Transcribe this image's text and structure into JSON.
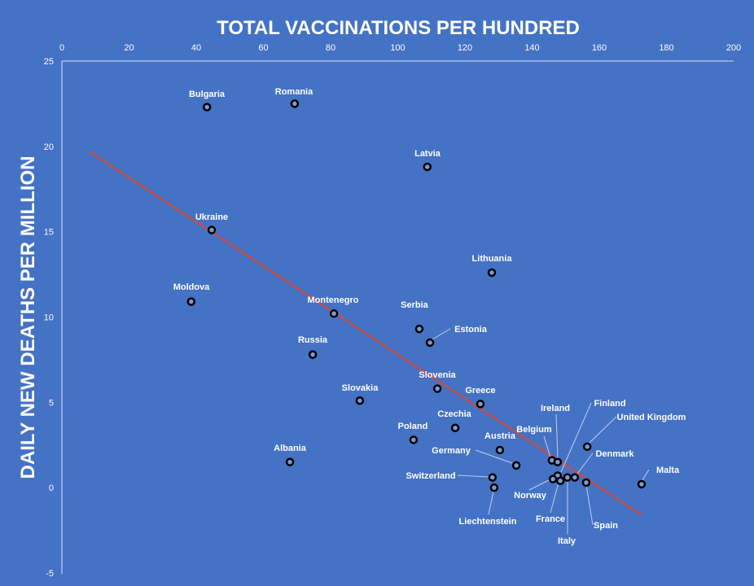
{
  "chart_data": {
    "type": "scatter",
    "title": "TOTAL VACCINATIONS PER HUNDRED",
    "xlabel": "TOTAL VACCINATIONS PER HUNDRED",
    "ylabel": "DAILY NEW DEATHS PER MILLION",
    "xlim": [
      0,
      200
    ],
    "ylim": [
      -5,
      25
    ],
    "x_ticks": [
      0,
      20,
      40,
      60,
      80,
      100,
      120,
      140,
      160,
      180,
      200
    ],
    "y_ticks": [
      25,
      20,
      15,
      10,
      5,
      0,
      -5
    ],
    "x_axis_position": "top",
    "grid": false,
    "legend": "none",
    "trendline": {
      "type": "linear",
      "color": "#C0504D",
      "x": [
        8.2,
        172.6
      ],
      "y": [
        19.7,
        -1.6
      ]
    },
    "colors": {
      "background": "#4472C4",
      "marker": "#000000",
      "text": "#FFFFFF",
      "axis": "#D9E1F2"
    },
    "points": [
      {
        "label": "Bulgaria",
        "x": 43.2,
        "y": 22.3
      },
      {
        "label": "Romania",
        "x": 69.3,
        "y": 22.5
      },
      {
        "label": "Latvia",
        "x": 108.8,
        "y": 18.8
      },
      {
        "label": "Ukraine",
        "x": 44.6,
        "y": 15.1
      },
      {
        "label": "Lithuania",
        "x": 128.0,
        "y": 12.6
      },
      {
        "label": "Moldova",
        "x": 38.5,
        "y": 10.9
      },
      {
        "label": "Montenegro",
        "x": 81.0,
        "y": 10.2
      },
      {
        "label": "Serbia",
        "x": 106.4,
        "y": 9.3
      },
      {
        "label": "Estonia",
        "x": 109.6,
        "y": 8.5
      },
      {
        "label": "Russia",
        "x": 74.7,
        "y": 7.8
      },
      {
        "label": "Slovenia",
        "x": 111.8,
        "y": 5.8
      },
      {
        "label": "Slovakia",
        "x": 88.7,
        "y": 5.1
      },
      {
        "label": "Greece",
        "x": 124.6,
        "y": 4.9
      },
      {
        "label": "Czechia",
        "x": 117.1,
        "y": 3.5
      },
      {
        "label": "Poland",
        "x": 104.7,
        "y": 2.8
      },
      {
        "label": "Austria",
        "x": 130.4,
        "y": 2.2
      },
      {
        "label": "Albania",
        "x": 67.9,
        "y": 1.5
      },
      {
        "label": "Germany",
        "x": 135.3,
        "y": 1.3
      },
      {
        "label": "Switzerland",
        "x": 128.2,
        "y": 0.6
      },
      {
        "label": "Liechtenstein",
        "x": 128.7,
        "y": 0.0
      },
      {
        "label": "Belgium",
        "x": 145.9,
        "y": 1.6
      },
      {
        "label": "Ireland",
        "x": 147.6,
        "y": 1.5
      },
      {
        "label": "United Kingdom",
        "x": 156.4,
        "y": 2.4
      },
      {
        "label": "Finland",
        "x": 147.6,
        "y": 0.7
      },
      {
        "label": "Norway",
        "x": 146.2,
        "y": 0.5
      },
      {
        "label": "France",
        "x": 148.4,
        "y": 0.4
      },
      {
        "label": "Italy",
        "x": 150.5,
        "y": 0.6
      },
      {
        "label": "Denmark",
        "x": 152.7,
        "y": 0.6
      },
      {
        "label": "Spain",
        "x": 156.1,
        "y": 0.3
      },
      {
        "label": "Malta",
        "x": 172.6,
        "y": 0.2
      }
    ]
  }
}
